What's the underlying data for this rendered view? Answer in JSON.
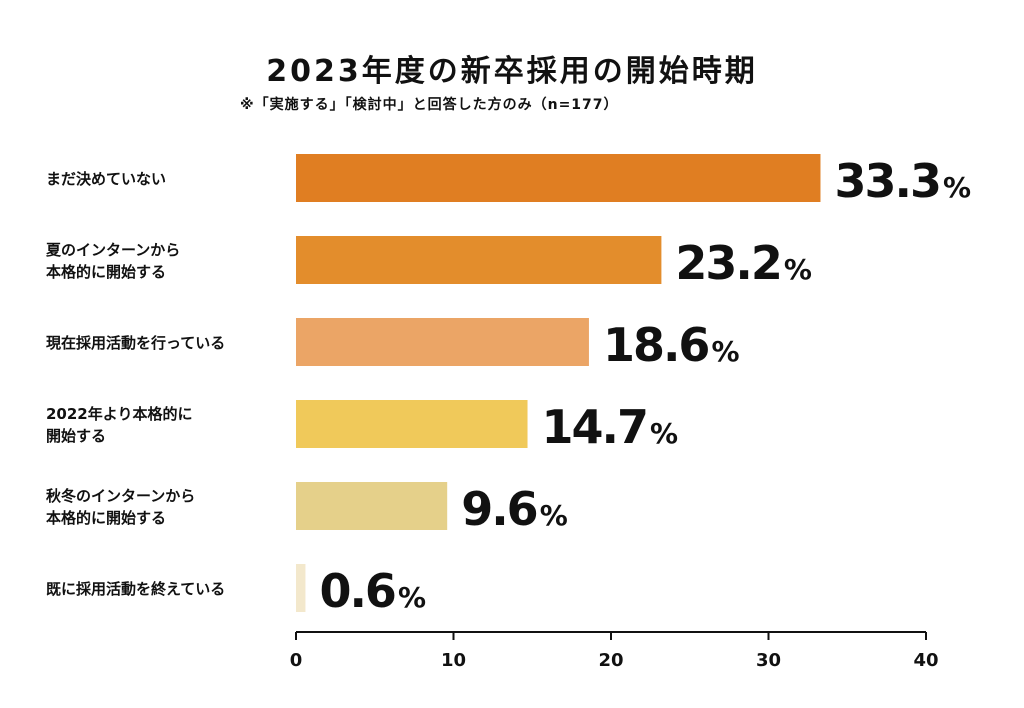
{
  "chart_data": {
    "type": "bar",
    "orientation": "horizontal",
    "title": "2023年度の新卒採用の開始時期",
    "subtitle": "※「実施する」「検討中」と回答した方のみ（n=177）",
    "categories": [
      [
        "まだ決めていない"
      ],
      [
        "夏のインターンから",
        "本格的に開始する"
      ],
      [
        "現在採用活動を行っている"
      ],
      [
        "2022年より本格的に",
        "開始する"
      ],
      [
        "秋冬のインターンから",
        "本格的に開始する"
      ],
      [
        "既に採用活動を終えている"
      ]
    ],
    "values": [
      33.3,
      23.2,
      18.6,
      14.7,
      9.6,
      0.6
    ],
    "value_labels": [
      "33.3",
      "23.2",
      "18.6",
      "14.7",
      "9.6",
      "0.6"
    ],
    "unit": "%",
    "bar_colors": [
      "#E07E22",
      "#E38D2C",
      "#EBA566",
      "#F0C95A",
      "#E5D08A",
      "#F3E8CC"
    ],
    "xlim": [
      0,
      40
    ],
    "xticks": [
      "0",
      "10",
      "20",
      "30",
      "40"
    ],
    "xlabel": "",
    "ylabel": "",
    "grid": false
  }
}
